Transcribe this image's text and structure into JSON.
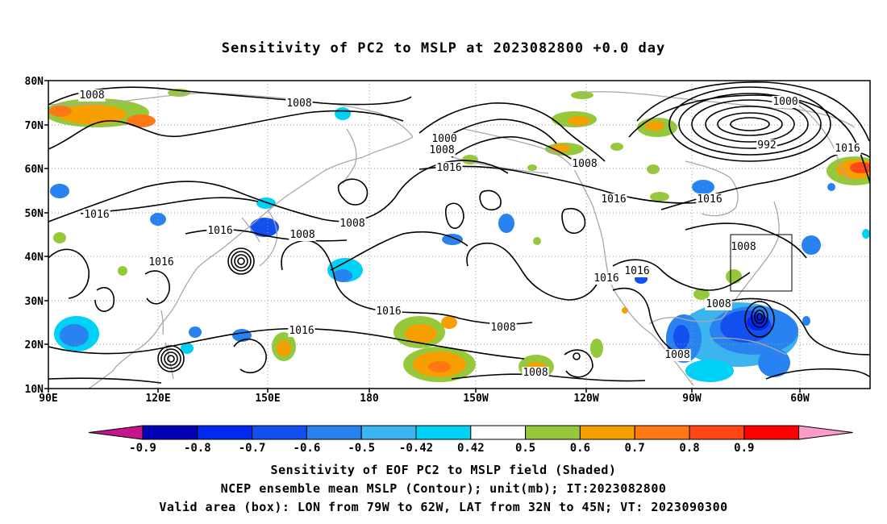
{
  "title": "Sensitivity of PC2 to MSLP at 2023082800 +0.0 day",
  "lat_labels": [
    "80N",
    "70N",
    "60N",
    "50N",
    "40N",
    "30N",
    "20N",
    "10N"
  ],
  "lon_labels": [
    "90E",
    "120E",
    "150E",
    "180",
    "150W",
    "120W",
    "90W",
    "60W"
  ],
  "contour_labels": [
    {
      "text": "1008"
    },
    {
      "text": "1008"
    },
    {
      "text": "1000"
    },
    {
      "text": "1008"
    },
    {
      "text": "1016"
    },
    {
      "text": "1008"
    },
    {
      "text": "1000"
    },
    {
      "text": "992"
    },
    {
      "text": "1016"
    },
    {
      "text": "1016"
    },
    {
      "text": "1016"
    },
    {
      "text": "1008"
    },
    {
      "text": "1016"
    },
    {
      "text": "1016"
    },
    {
      "text": "1008"
    },
    {
      "text": "1016"
    },
    {
      "text": "1008"
    },
    {
      "text": "1016"
    },
    {
      "text": "1016"
    },
    {
      "text": "1016"
    },
    {
      "text": "1016"
    },
    {
      "text": "1008"
    },
    {
      "text": "1008"
    },
    {
      "text": "1008"
    },
    {
      "text": "1008"
    }
  ],
  "colorbar": {
    "labels": [
      "-0.9",
      "-0.8",
      "-0.7",
      "-0.6",
      "-0.5",
      "-0.42",
      "0.42",
      "0.5",
      "0.6",
      "0.7",
      "0.8",
      "0.9"
    ],
    "colors": [
      "#c8148c",
      "#0000b4",
      "#0028f0",
      "#1450f0",
      "#2882f0",
      "#3cb4f0",
      "#00d2f5",
      "#ffffff",
      "#96c83c",
      "#f5a000",
      "#ff7814",
      "#ff4614",
      "#ff0000",
      "#ff9bc8"
    ]
  },
  "valid_box": {
    "lon_west": "79W",
    "lon_east": "62W",
    "lat_south": "32N",
    "lat_north": "45N"
  },
  "captions": [
    "Sensitivity of EOF PC2 to MSLP field (Shaded)",
    "NCEP ensemble mean MSLP (Contour); unit(mb); IT:2023082800",
    "Valid area (box): LON from 79W to 62W, LAT from 32N to 45N; VT: 2023090300"
  ]
}
